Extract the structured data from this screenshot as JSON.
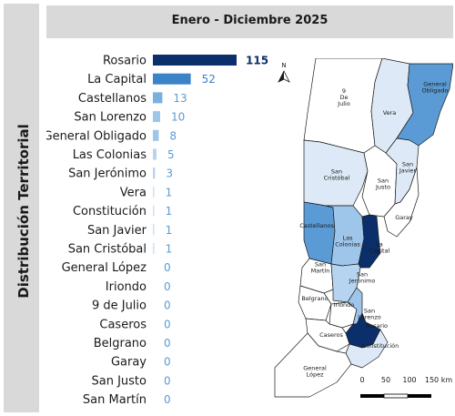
{
  "side_title": "Distribución Territorial",
  "header_title": "Enero - Diciembre 2025",
  "chart_data": {
    "type": "bar",
    "orientation": "horizontal",
    "categories": [
      "Rosario",
      "La Capital",
      "Castellanos",
      "San Lorenzo",
      "General Obligado",
      "Las Colonias",
      "San Jerónimo",
      "Vera",
      "Constitución",
      "San Javier",
      "San Cristóbal",
      "General López",
      "Iriondo",
      "9 de Julio",
      "Caseros",
      "Belgrano",
      "Garay",
      "San Justo",
      "San Martín"
    ],
    "values": [
      115,
      52,
      13,
      10,
      8,
      5,
      3,
      1,
      1,
      1,
      1,
      0,
      0,
      0,
      0,
      0,
      0,
      0,
      0
    ],
    "bar_colors": [
      "#0b2f6b",
      "#3c82c6",
      "#79b0e0",
      "#9ec5ea",
      "#9ec5ea",
      "#b6d4ef",
      "#b6d4ef",
      "#cfe2f5",
      "#cfe2f5",
      "#cfe2f5",
      "#cfe2f5",
      "#dde9f6",
      "#dde9f6",
      "#dde9f6",
      "#dde9f6",
      "#dde9f6",
      "#dde9f6",
      "#dde9f6",
      "#dde9f6"
    ],
    "label_colors": [
      "#0b2f6b",
      "#3c82c6",
      "#5b9bd5",
      "#5b9bd5",
      "#5b9bd5",
      "#5b9bd5",
      "#5b9bd5",
      "#5b9bd5",
      "#5b9bd5",
      "#5b9bd5",
      "#5b9bd5",
      "#5b9bd5",
      "#5b9bd5",
      "#5b9bd5",
      "#5b9bd5",
      "#5b9bd5",
      "#5b9bd5",
      "#5b9bd5",
      "#5b9bd5"
    ],
    "xlim": [
      0,
      115
    ],
    "title": "",
    "xlabel": "",
    "ylabel": ""
  },
  "map": {
    "north_label": "N",
    "scale_labels": [
      "0",
      "50",
      "100",
      "150 km"
    ],
    "regions": [
      {
        "name": "9 De Julio",
        "lines": [
          "9",
          "De",
          "Julio"
        ],
        "color": "#ffffff"
      },
      {
        "name": "Vera",
        "lines": [
          "Vera"
        ],
        "color": "#dde9f6"
      },
      {
        "name": "General Obligado",
        "lines": [
          "General",
          "Obligado"
        ],
        "color": "#5b9bd5"
      },
      {
        "name": "San Cristóbal",
        "lines": [
          "San",
          "Cristóbal"
        ],
        "color": "#dde9f6"
      },
      {
        "name": "San Justo",
        "lines": [
          "San",
          "Justo"
        ],
        "color": "#ffffff"
      },
      {
        "name": "San Javier",
        "lines": [
          "San",
          "Javier"
        ],
        "color": "#dde9f6"
      },
      {
        "name": "Garay",
        "lines": [
          "Garay"
        ],
        "color": "#ffffff"
      },
      {
        "name": "Castellanos",
        "lines": [
          "Castellanos"
        ],
        "color": "#5b9bd5"
      },
      {
        "name": "Las Colonias",
        "lines": [
          "Las",
          "Colonias"
        ],
        "color": "#9ec5ea"
      },
      {
        "name": "La Capital",
        "lines": [
          "La",
          "Capital"
        ],
        "color": "#0b2f6b"
      },
      {
        "name": "San Martín",
        "lines": [
          "San",
          "Martín"
        ],
        "color": "#ffffff"
      },
      {
        "name": "San Jerónimo",
        "lines": [
          "San",
          "Jerónimo"
        ],
        "color": "#b6d4ef"
      },
      {
        "name": "Belgrano",
        "lines": [
          "Belgrano"
        ],
        "color": "#ffffff"
      },
      {
        "name": "Iriondo",
        "lines": [
          "Iriondo"
        ],
        "color": "#ffffff"
      },
      {
        "name": "San Lorenzo",
        "lines": [
          "San",
          "Lorenzo"
        ],
        "color": "#9ec5ea"
      },
      {
        "name": "Rosario",
        "lines": [
          "Rosario"
        ],
        "color": "#0b2f6b"
      },
      {
        "name": "Caseros",
        "lines": [
          "Caseros"
        ],
        "color": "#ffffff"
      },
      {
        "name": "Constitución",
        "lines": [
          "Constitución"
        ],
        "color": "#dde9f6"
      },
      {
        "name": "General López",
        "lines": [
          "General",
          "López"
        ],
        "color": "#ffffff"
      }
    ]
  }
}
